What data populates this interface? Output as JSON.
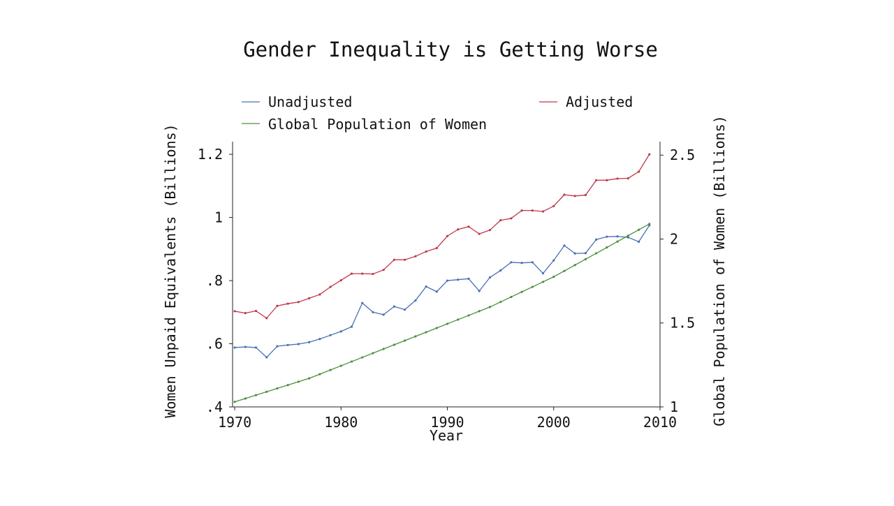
{
  "chart_data": {
    "type": "line",
    "title": "Gender Inequality is Getting Worse",
    "xlabel": "Year",
    "ylabel_left": "Women Unpaid Equivalents (Billions)",
    "ylabel_right": "Global Population of Women (Billions)",
    "xlim": [
      1969.8,
      2010
    ],
    "ylim_left": [
      0.4,
      1.24
    ],
    "ylim_right": [
      1.0,
      2.58
    ],
    "x_ticks": [
      {
        "value": 1970,
        "label": "1970"
      },
      {
        "value": 1980,
        "label": "1980"
      },
      {
        "value": 1990,
        "label": "1990"
      },
      {
        "value": 2000,
        "label": "2000"
      },
      {
        "value": 2010,
        "label": "2010"
      }
    ],
    "y_left_ticks": [
      {
        "value": 0.4,
        "label": ".4"
      },
      {
        "value": 0.6,
        "label": ".6"
      },
      {
        "value": 0.8,
        "label": ".8"
      },
      {
        "value": 1.0,
        "label": "1"
      },
      {
        "value": 1.2,
        "label": "1.2"
      }
    ],
    "y_right_ticks": [
      {
        "value": 1.0,
        "label": "1"
      },
      {
        "value": 1.5,
        "label": "1.5"
      },
      {
        "value": 2.0,
        "label": "2"
      },
      {
        "value": 2.5,
        "label": "2.5"
      }
    ],
    "grid": false,
    "legend_position": "top",
    "x": [
      1970,
      1971,
      1972,
      1973,
      1974,
      1975,
      1976,
      1977,
      1978,
      1979,
      1980,
      1981,
      1982,
      1983,
      1984,
      1985,
      1986,
      1987,
      1988,
      1989,
      1990,
      1991,
      1992,
      1993,
      1994,
      1995,
      1996,
      1997,
      1998,
      1999,
      2000,
      2001,
      2002,
      2003,
      2004,
      2005,
      2006,
      2007,
      2008,
      2009
    ],
    "series": [
      {
        "name": "Unadjusted",
        "axis": "left",
        "color": "#4a6fb5",
        "values": [
          0.588,
          0.59,
          0.588,
          0.557,
          0.592,
          0.596,
          0.599,
          0.605,
          0.615,
          0.627,
          0.639,
          0.654,
          0.729,
          0.7,
          0.692,
          0.718,
          0.708,
          0.737,
          0.781,
          0.765,
          0.8,
          0.803,
          0.806,
          0.767,
          0.81,
          0.832,
          0.858,
          0.856,
          0.858,
          0.823,
          0.864,
          0.911,
          0.886,
          0.887,
          0.93,
          0.939,
          0.94,
          0.937,
          0.923,
          0.975
        ]
      },
      {
        "name": "Adjusted",
        "axis": "left",
        "color": "#c0394a",
        "values": [
          0.703,
          0.697,
          0.704,
          0.681,
          0.72,
          0.727,
          0.732,
          0.744,
          0.756,
          0.78,
          0.801,
          0.822,
          0.822,
          0.821,
          0.834,
          0.866,
          0.866,
          0.877,
          0.892,
          0.903,
          0.941,
          0.962,
          0.971,
          0.948,
          0.96,
          0.991,
          0.997,
          1.022,
          1.022,
          1.019,
          1.036,
          1.072,
          1.068,
          1.071,
          1.118,
          1.118,
          1.123,
          1.124,
          1.145,
          1.2
        ]
      },
      {
        "name": "Global Population of Women",
        "axis": "right",
        "color": "#4d8f3b",
        "values": [
          1.03,
          1.05,
          1.07,
          1.09,
          1.11,
          1.13,
          1.15,
          1.17,
          1.195,
          1.22,
          1.245,
          1.27,
          1.295,
          1.32,
          1.345,
          1.37,
          1.395,
          1.42,
          1.445,
          1.47,
          1.495,
          1.52,
          1.545,
          1.57,
          1.595,
          1.625,
          1.655,
          1.685,
          1.715,
          1.745,
          1.775,
          1.81,
          1.845,
          1.88,
          1.915,
          1.95,
          1.985,
          2.02,
          2.055,
          2.09
        ]
      }
    ]
  }
}
